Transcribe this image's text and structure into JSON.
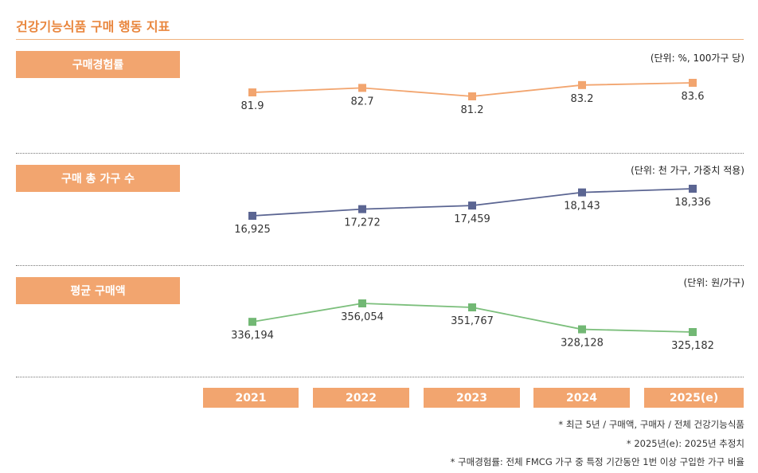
{
  "title": "건강기능식품 구매 행동 지표",
  "chart_data": [
    {
      "type": "line",
      "label": "구매경험률",
      "unit_note": "(단위: %, 100가구 당)",
      "categories": [
        "2021",
        "2022",
        "2023",
        "2024",
        "2025(e)"
      ],
      "values": [
        81.9,
        82.7,
        81.2,
        83.2,
        83.6
      ],
      "value_labels": [
        "81.9",
        "82.7",
        "81.2",
        "83.2",
        "83.6"
      ],
      "color": "#f2a56f",
      "marker_color": "#f2a56f"
    },
    {
      "type": "line",
      "label": "구매 총 가구 수",
      "unit_note": "(단위: 천 가구, 가중치 적용)",
      "categories": [
        "2021",
        "2022",
        "2023",
        "2024",
        "2025(e)"
      ],
      "values": [
        16925,
        17272,
        17459,
        18143,
        18336
      ],
      "value_labels": [
        "16,925",
        "17,272",
        "17,459",
        "18,143",
        "18,336"
      ],
      "color": "#5b6592",
      "marker_color": "#5b6592"
    },
    {
      "type": "line",
      "label": "평균 구매액",
      "unit_note": "(단위: 원/가구)",
      "categories": [
        "2021",
        "2022",
        "2023",
        "2024",
        "2025(e)"
      ],
      "values": [
        336194,
        356054,
        351767,
        328128,
        325182
      ],
      "value_labels": [
        "336,194",
        "356,054",
        "351,767",
        "328,128",
        "325,182"
      ],
      "color": "#7cbf7c",
      "marker_color": "#72b874"
    }
  ],
  "years": [
    "2021",
    "2022",
    "2023",
    "2024",
    "2025(e)"
  ],
  "footnotes": [
    "* 최근 5년 / 구매액, 구매자 / 전체 건강기능식품",
    "* 2025년(e): 2025년 추정치",
    "* 구매경험률: 전체 FMCG 가구 중 특정 기간동안 1번 이상 구입한 가구 비율"
  ]
}
